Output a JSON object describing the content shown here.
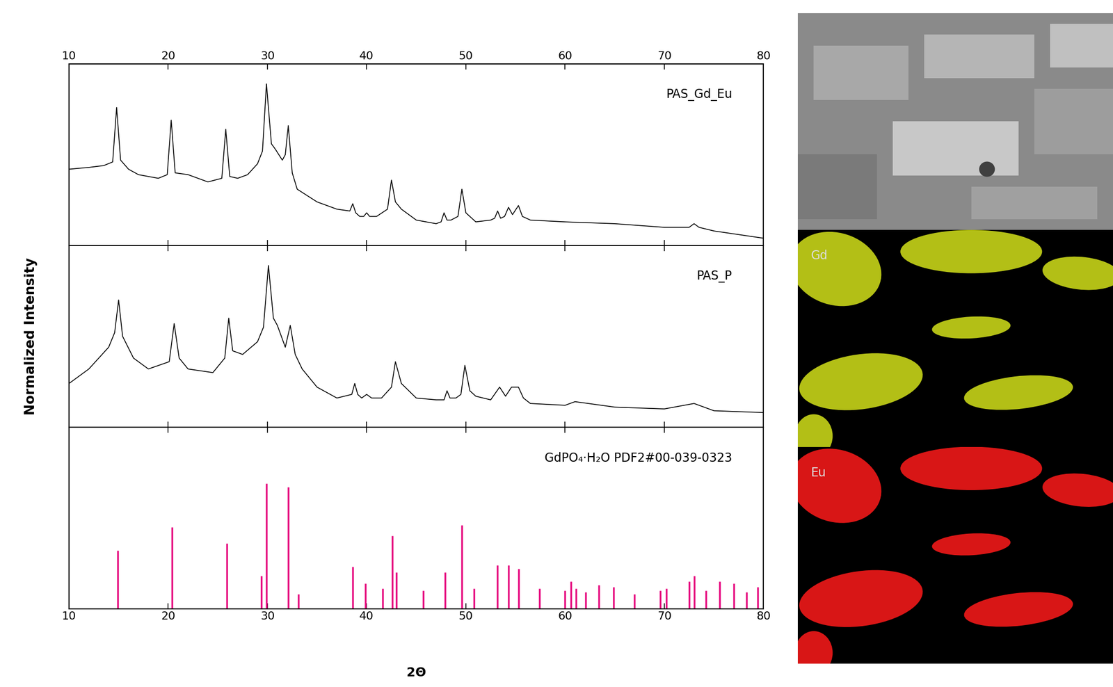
{
  "chart_data": [
    {
      "type": "line",
      "title": "PAS_Gd_Eu",
      "color": "#000000",
      "x": [
        10,
        12,
        13.5,
        14.4,
        14.8,
        15.2,
        16,
        17,
        19,
        19.9,
        20.3,
        20.7,
        22,
        24,
        25.4,
        25.8,
        26.2,
        27,
        28,
        29,
        29.5,
        29.9,
        30.4,
        30.8,
        31.5,
        31.8,
        32.1,
        32.5,
        33,
        35,
        37,
        38.3,
        38.6,
        38.9,
        39.3,
        39.7,
        40,
        40.3,
        41,
        42.1,
        42.5,
        42.9,
        43.5,
        45,
        47,
        47.5,
        47.8,
        48.1,
        48.5,
        49.2,
        49.6,
        50,
        51,
        52.5,
        52.9,
        53.2,
        53.5,
        53.9,
        54.3,
        54.7,
        55.3,
        55.7,
        56.5,
        60,
        65,
        70,
        72.5,
        73,
        73.5,
        75,
        80
      ],
      "values": [
        0.42,
        0.43,
        0.44,
        0.46,
        0.76,
        0.47,
        0.42,
        0.39,
        0.37,
        0.39,
        0.69,
        0.4,
        0.39,
        0.35,
        0.37,
        0.64,
        0.38,
        0.37,
        0.39,
        0.45,
        0.52,
        0.89,
        0.56,
        0.53,
        0.47,
        0.5,
        0.66,
        0.4,
        0.31,
        0.24,
        0.2,
        0.19,
        0.23,
        0.18,
        0.16,
        0.16,
        0.18,
        0.16,
        0.16,
        0.2,
        0.36,
        0.24,
        0.2,
        0.14,
        0.12,
        0.13,
        0.18,
        0.14,
        0.14,
        0.16,
        0.31,
        0.18,
        0.13,
        0.14,
        0.15,
        0.19,
        0.15,
        0.16,
        0.21,
        0.17,
        0.22,
        0.16,
        0.14,
        0.13,
        0.12,
        0.1,
        0.1,
        0.12,
        0.1,
        0.08,
        0.04
      ],
      "xlim": [
        10,
        80
      ],
      "ylim": [
        0,
        1
      ],
      "xticks": [
        10,
        20,
        30,
        40,
        50,
        60,
        70,
        80
      ],
      "tick_labels": "x"
    },
    {
      "type": "line",
      "title": "PAS_P",
      "color": "#000000",
      "x": [
        10,
        12,
        14,
        14.6,
        15.0,
        15.4,
        16.5,
        18,
        20.1,
        20.6,
        21.1,
        22,
        24.5,
        25.7,
        26.1,
        26.5,
        27.5,
        29,
        29.6,
        30.1,
        30.6,
        31,
        31.8,
        32.3,
        32.8,
        33.5,
        35,
        37,
        38.5,
        38.8,
        39.1,
        39.5,
        40,
        40.5,
        41.5,
        42.5,
        42.9,
        43.3,
        43.5,
        45,
        47,
        47.8,
        48.1,
        48.4,
        49,
        49.5,
        49.9,
        50.4,
        51,
        52.5,
        53.4,
        54,
        54.6,
        55.3,
        55.8,
        56.5,
        60,
        61,
        65,
        70,
        73,
        75,
        80
      ],
      "values": [
        0.24,
        0.32,
        0.44,
        0.52,
        0.7,
        0.5,
        0.38,
        0.32,
        0.36,
        0.57,
        0.38,
        0.32,
        0.3,
        0.38,
        0.6,
        0.42,
        0.4,
        0.47,
        0.55,
        0.89,
        0.6,
        0.56,
        0.44,
        0.56,
        0.4,
        0.32,
        0.22,
        0.16,
        0.18,
        0.24,
        0.18,
        0.16,
        0.18,
        0.16,
        0.16,
        0.22,
        0.36,
        0.28,
        0.24,
        0.16,
        0.15,
        0.15,
        0.2,
        0.16,
        0.16,
        0.18,
        0.34,
        0.2,
        0.17,
        0.15,
        0.22,
        0.17,
        0.22,
        0.22,
        0.16,
        0.13,
        0.12,
        0.14,
        0.11,
        0.1,
        0.13,
        0.09,
        0.08
      ],
      "xlim": [
        10,
        80
      ],
      "ylim": [
        0,
        1
      ],
      "xticks": [
        10,
        20,
        30,
        40,
        50,
        60,
        70,
        80
      ],
      "tick_labels": false
    },
    {
      "type": "stem",
      "title": "GdPO₄·H₂O PDF2#00-039-0323",
      "color": "#e6007e",
      "x": [
        14.9,
        20.4,
        25.9,
        29.4,
        29.9,
        32.1,
        33.1,
        38.6,
        39.9,
        41.6,
        42.6,
        43.0,
        45.7,
        47.9,
        49.6,
        50.8,
        53.2,
        54.3,
        55.3,
        57.4,
        60.0,
        60.6,
        61.1,
        62.1,
        63.4,
        64.9,
        67.0,
        69.6,
        70.2,
        72.5,
        73.0,
        74.2,
        75.6,
        77.0,
        78.3,
        79.4
      ],
      "values": [
        0.32,
        0.45,
        0.36,
        0.18,
        0.69,
        0.67,
        0.08,
        0.23,
        0.14,
        0.11,
        0.4,
        0.2,
        0.1,
        0.2,
        0.46,
        0.11,
        0.24,
        0.24,
        0.22,
        0.11,
        0.1,
        0.15,
        0.11,
        0.09,
        0.13,
        0.12,
        0.08,
        0.1,
        0.11,
        0.15,
        0.18,
        0.1,
        0.15,
        0.14,
        0.09,
        0.12
      ],
      "xlim": [
        10,
        80
      ],
      "ylim": [
        0,
        1
      ],
      "xticks": [
        10,
        20,
        30,
        40,
        50,
        60,
        70,
        80
      ],
      "tick_labels": "x",
      "x_label": "2Θ"
    }
  ],
  "y_label": "Normalized Intensity",
  "maps": [
    {
      "label": "Gd",
      "color": "#d4e21a"
    },
    {
      "label": "Eu",
      "color": "#ff1a1a"
    }
  ]
}
